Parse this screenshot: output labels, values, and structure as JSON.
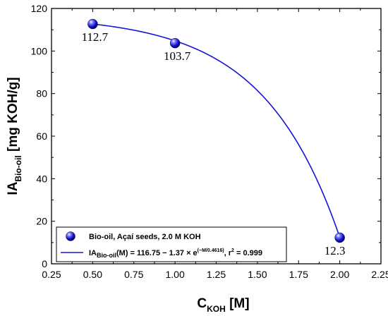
{
  "chart_data": {
    "type": "scatter",
    "xlim": [
      0.25,
      2.25
    ],
    "ylim": [
      0,
      120
    ],
    "xticks": [
      0.25,
      0.5,
      0.75,
      1.0,
      1.25,
      1.5,
      1.75,
      2.0,
      2.25
    ],
    "xtick_labels": [
      "0.25",
      "0.50",
      "0.75",
      "1.00",
      "1.25",
      "1.50",
      "1.75",
      "2.00",
      "2.25"
    ],
    "yticks": [
      0,
      20,
      40,
      60,
      80,
      100,
      120
    ],
    "ytick_labels": [
      "0",
      "20",
      "40",
      "60",
      "80",
      "100",
      "120"
    ],
    "xlabel": {
      "main": "C",
      "sub": "KOH",
      "rest": " [M]"
    },
    "ylabel": {
      "main": "IA",
      "sub": "Bio-oil",
      "rest": " [mg KOH/g]"
    },
    "series": [
      {
        "name": "Bio-oil, Açaí seeds, 2.0 M KOH",
        "x": [
          0.5,
          1.0,
          2.0
        ],
        "y": [
          112.7,
          103.7,
          12.3
        ],
        "labels": [
          "112.7",
          "103.7",
          "12.3"
        ],
        "color": "#1515c8"
      }
    ],
    "fit": {
      "label_prefix": "IA",
      "label_sub": "Bio-oil",
      "label_mid": "(M) = 116.75 − 1.37 × e",
      "label_sup": "(−M/0.4616)",
      "label_r2": ", r",
      "label_r2_sup": "2",
      "label_end": " = 0.999",
      "a": 116.75,
      "b": 1.37,
      "c": 0.4616,
      "color": "#1515d8"
    },
    "legend_position": "bottom-left",
    "grid": false
  }
}
